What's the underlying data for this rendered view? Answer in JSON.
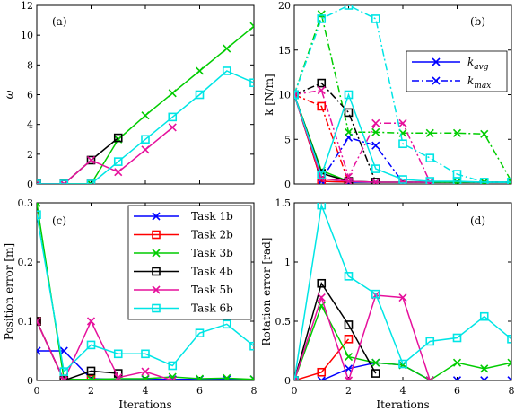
{
  "chart_data": [
    {
      "id": "a",
      "type": "line",
      "panel_label": "(a)",
      "xlabel": "",
      "ylabel": "ω",
      "xlim": [
        0,
        8
      ],
      "ylim": [
        0,
        12
      ],
      "xticks": [
        0,
        2,
        4,
        6,
        8
      ],
      "yticks": [
        0,
        2,
        4,
        6,
        8,
        10,
        12
      ],
      "xtick_labels": [
        "0",
        "2",
        "4",
        "6",
        "8"
      ],
      "ytick_labels": [
        "0",
        "2",
        "4",
        "6",
        "8",
        "10",
        "12"
      ],
      "series": [
        {
          "task": "task-1b",
          "x": [
            0,
            1,
            2
          ],
          "y": [
            0,
            0,
            0
          ]
        },
        {
          "task": "task-2b",
          "x": [
            0,
            1,
            2
          ],
          "y": [
            0,
            0,
            0
          ]
        },
        {
          "task": "task-3b",
          "x": [
            0,
            1,
            2,
            3,
            4,
            5,
            6,
            7,
            8
          ],
          "y": [
            0,
            0,
            0,
            3.0,
            4.6,
            6.1,
            7.6,
            9.1,
            10.6
          ]
        },
        {
          "task": "task-4b",
          "x": [
            0,
            1,
            2,
            3
          ],
          "y": [
            0,
            0,
            1.6,
            3.1
          ]
        },
        {
          "task": "task-5b",
          "x": [
            0,
            1,
            2,
            3,
            4,
            5
          ],
          "y": [
            0,
            0,
            1.6,
            0.8,
            2.3,
            3.8
          ]
        },
        {
          "task": "task-6b",
          "x": [
            0,
            1,
            2,
            3,
            4,
            5,
            6,
            7,
            8
          ],
          "y": [
            0,
            0,
            0,
            1.5,
            3.0,
            4.5,
            6.0,
            7.6,
            6.8
          ]
        }
      ]
    },
    {
      "id": "b",
      "type": "line",
      "panel_label": "(b)",
      "xlabel": "",
      "ylabel": "k [N/m]",
      "xlim": [
        0,
        8
      ],
      "ylim": [
        0,
        20
      ],
      "xticks": [
        0,
        2,
        4,
        6,
        8
      ],
      "yticks": [
        0,
        5,
        10,
        15,
        20
      ],
      "xtick_labels": [
        "0",
        "2",
        "4",
        "6",
        "8"
      ],
      "ytick_labels": [
        "0",
        "5",
        "10",
        "15",
        "20"
      ],
      "legend": [
        {
          "label": "k_avg",
          "text_main": "k",
          "text_sub": "avg",
          "style": "solid"
        },
        {
          "label": "k_max",
          "text_main": "k",
          "text_sub": "max",
          "style": "dashdot"
        }
      ],
      "series": [
        {
          "task": "task-1b",
          "kind": "avg",
          "x": [
            0,
            1,
            2,
            3,
            4,
            5,
            6,
            7,
            8
          ],
          "y": [
            10,
            0.3,
            0.2,
            0.2,
            0.2,
            0.2,
            0.2,
            0.2,
            0.2
          ]
        },
        {
          "task": "task-1b",
          "kind": "max",
          "x": [
            0,
            1,
            2,
            3,
            4,
            5,
            6,
            7,
            8
          ],
          "y": [
            10,
            0.5,
            5.2,
            4.3,
            0.2,
            0.2,
            0.2,
            0.2,
            0.2
          ]
        },
        {
          "task": "task-2b",
          "kind": "avg",
          "x": [
            0,
            1,
            2
          ],
          "y": [
            10,
            0.3,
            0.2
          ]
        },
        {
          "task": "task-2b",
          "kind": "max",
          "x": [
            0,
            1,
            2
          ],
          "y": [
            10,
            8.7,
            0.2
          ]
        },
        {
          "task": "task-3b",
          "kind": "avg",
          "x": [
            0,
            1,
            2,
            3,
            4,
            5,
            6,
            7,
            8
          ],
          "y": [
            10,
            1.5,
            0.3,
            0.2,
            0.2,
            0.2,
            0.2,
            0.2,
            0.2
          ]
        },
        {
          "task": "task-3b",
          "kind": "max",
          "x": [
            0,
            1,
            2,
            3,
            4,
            5,
            6,
            7,
            8
          ],
          "y": [
            10,
            19.0,
            5.8,
            5.8,
            5.7,
            5.7,
            5.7,
            5.6,
            0.3
          ]
        },
        {
          "task": "task-4b",
          "kind": "avg",
          "x": [
            0,
            1,
            2,
            3
          ],
          "y": [
            10,
            1.2,
            0.3,
            0.2
          ]
        },
        {
          "task": "task-4b",
          "kind": "max",
          "x": [
            0,
            1,
            2,
            3
          ],
          "y": [
            10,
            11.3,
            8.0,
            0.2
          ]
        },
        {
          "task": "task-5b",
          "kind": "avg",
          "x": [
            0,
            1,
            2,
            3,
            4,
            5
          ],
          "y": [
            10,
            0.6,
            0.3,
            0.2,
            0.2,
            0.2
          ]
        },
        {
          "task": "task-5b",
          "kind": "max",
          "x": [
            0,
            1,
            2,
            3,
            4,
            5
          ],
          "y": [
            10,
            10.5,
            0.8,
            6.8,
            6.8,
            0.2
          ]
        },
        {
          "task": "task-6b",
          "kind": "avg",
          "x": [
            0,
            1,
            2,
            3,
            4,
            5,
            6,
            7,
            8
          ],
          "y": [
            10,
            1.0,
            10.0,
            1.7,
            0.5,
            0.3,
            0.3,
            0.2,
            0.2
          ]
        },
        {
          "task": "task-6b",
          "kind": "max",
          "x": [
            0,
            1,
            2,
            3,
            4,
            5,
            6,
            7,
            8
          ],
          "y": [
            10,
            18.5,
            20.0,
            18.5,
            4.5,
            2.9,
            1.1,
            0.2,
            0.2
          ]
        }
      ]
    },
    {
      "id": "c",
      "type": "line",
      "panel_label": "(c)",
      "xlabel": "Iterations",
      "ylabel": "Position error [m]",
      "xlim": [
        0,
        8
      ],
      "ylim": [
        0,
        0.3
      ],
      "xticks": [
        0,
        2,
        4,
        6,
        8
      ],
      "yticks": [
        0,
        0.1,
        0.2,
        0.3
      ],
      "xtick_labels": [
        "0",
        "2",
        "4",
        "6",
        "8"
      ],
      "ytick_labels": [
        "0",
        "0.1",
        "0.2",
        "0.3"
      ],
      "legend": [
        {
          "label": "Task 1b",
          "task": "task-1b"
        },
        {
          "label": "Task 2b",
          "task": "task-2b"
        },
        {
          "label": "Task 3b",
          "task": "task-3b"
        },
        {
          "label": "Task 4b",
          "task": "task-4b"
        },
        {
          "label": "Task 5b",
          "task": "task-5b"
        },
        {
          "label": "Task 6b",
          "task": "task-6b"
        }
      ],
      "series": [
        {
          "task": "task-1b",
          "x": [
            0,
            1,
            2,
            3,
            4,
            5,
            6,
            7,
            8
          ],
          "y": [
            0.05,
            0.05,
            0.003,
            0.002,
            0.002,
            0.002,
            0.002,
            0.002,
            0.002
          ]
        },
        {
          "task": "task-2b",
          "x": [
            0,
            1,
            2
          ],
          "y": [
            0.1,
            0.0,
            0.002
          ]
        },
        {
          "task": "task-3b",
          "x": [
            0,
            1,
            2,
            3,
            4,
            5,
            6,
            7,
            8
          ],
          "y": [
            0.3,
            0.002,
            0.002,
            0.003,
            0.003,
            0.006,
            0.003,
            0.004,
            0.002
          ]
        },
        {
          "task": "task-4b",
          "x": [
            0,
            1,
            2,
            3
          ],
          "y": [
            0.1,
            0.0,
            0.016,
            0.012
          ]
        },
        {
          "task": "task-5b",
          "x": [
            0,
            1,
            2,
            3,
            4,
            5
          ],
          "y": [
            0.1,
            0.0,
            0.1,
            0.005,
            0.015,
            0.0
          ]
        },
        {
          "task": "task-6b",
          "x": [
            0,
            1,
            2,
            3,
            4,
            5,
            6,
            7,
            8
          ],
          "y": [
            0.28,
            0.015,
            0.06,
            0.045,
            0.045,
            0.025,
            0.08,
            0.095,
            0.058
          ]
        }
      ]
    },
    {
      "id": "d",
      "type": "line",
      "panel_label": "(d)",
      "xlabel": "Iterations",
      "ylabel": "Rotation error [rad]",
      "xlim": [
        0,
        8
      ],
      "ylim": [
        0,
        1.5
      ],
      "xticks": [
        0,
        2,
        4,
        6,
        8
      ],
      "yticks": [
        0,
        0.5,
        1,
        1.5
      ],
      "xtick_labels": [
        "0",
        "2",
        "4",
        "6",
        "8"
      ],
      "ytick_labels": [
        "0",
        "0.5",
        "1",
        "1.5"
      ],
      "series": [
        {
          "task": "task-1b",
          "x": [
            0,
            1,
            2,
            3,
            4,
            5,
            6,
            7,
            8
          ],
          "y": [
            0,
            0,
            0.1,
            0.15,
            0.13,
            0.002,
            0.002,
            0.002,
            0.002
          ]
        },
        {
          "task": "task-2b",
          "x": [
            0,
            1,
            2
          ],
          "y": [
            0,
            0.07,
            0.35
          ]
        },
        {
          "task": "task-3b",
          "x": [
            0,
            1,
            2,
            3,
            4,
            5,
            6,
            7,
            8
          ],
          "y": [
            0,
            0.63,
            0.2,
            0.15,
            0.13,
            0.002,
            0.15,
            0.1,
            0.15
          ]
        },
        {
          "task": "task-4b",
          "x": [
            0,
            1,
            2,
            3
          ],
          "y": [
            0,
            0.82,
            0.47,
            0.06
          ]
        },
        {
          "task": "task-5b",
          "x": [
            0,
            1,
            2,
            3,
            4,
            5
          ],
          "y": [
            0,
            0.7,
            0.0,
            0.72,
            0.7,
            0.0
          ]
        },
        {
          "task": "task-6b",
          "x": [
            0,
            1,
            2,
            3,
            4,
            5,
            6,
            7,
            8
          ],
          "y": [
            0,
            1.48,
            0.88,
            0.73,
            0.14,
            0.33,
            0.36,
            0.54,
            0.35
          ]
        }
      ]
    }
  ],
  "tasks": {
    "task-1b": {
      "color": "#0000ff",
      "marker": "x"
    },
    "task-2b": {
      "color": "#ff0000",
      "marker": "square"
    },
    "task-3b": {
      "color": "#00cc00",
      "marker": "x"
    },
    "task-4b": {
      "color": "#000000",
      "marker": "square"
    },
    "task-5b": {
      "color": "#e6109c",
      "marker": "x"
    },
    "task-6b": {
      "color": "#00e5e5",
      "marker": "square"
    }
  }
}
